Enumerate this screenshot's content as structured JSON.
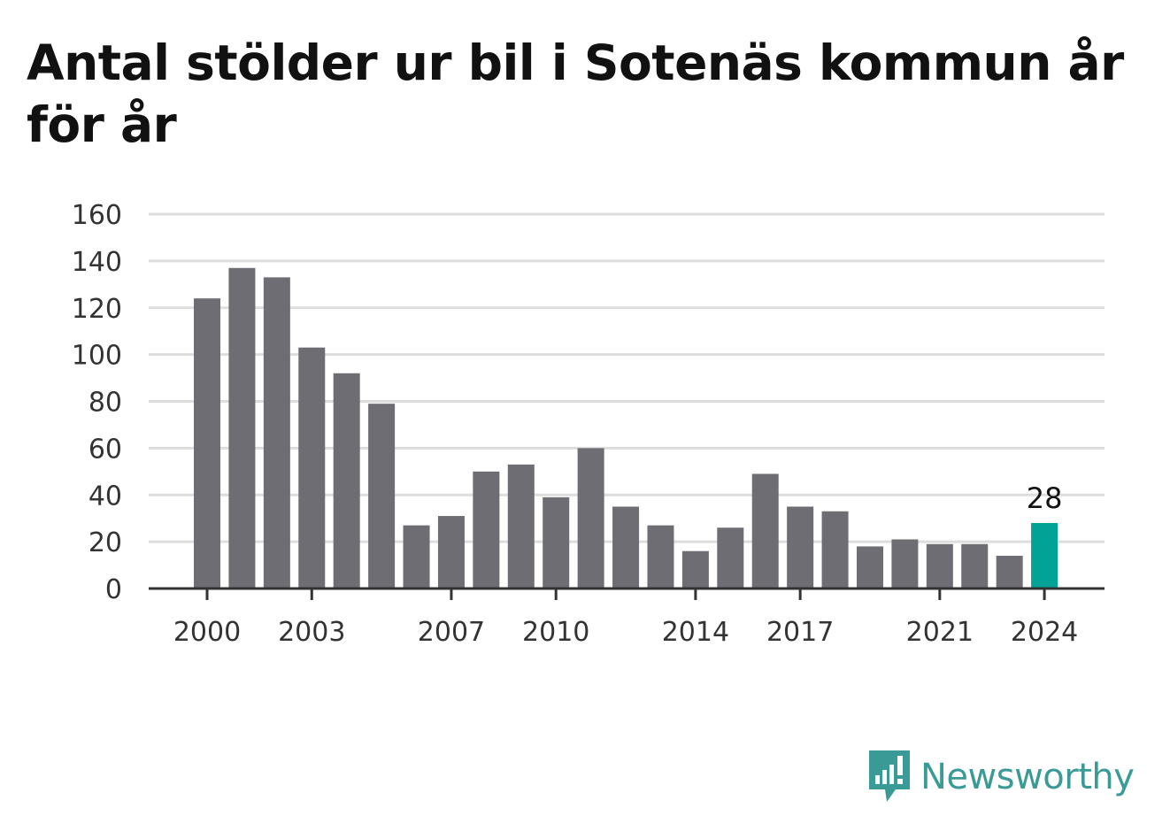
{
  "title": "Antal stölder ur bil i Sotenäs kommun år för år",
  "brand": {
    "name": "Newsworthy",
    "icon": "newsworthy-logo-icon"
  },
  "colors": {
    "bar": "#6e6d73",
    "highlight": "#00a396",
    "grid": "#dddddd",
    "axis": "#333333",
    "brand": "#3a9a95"
  },
  "chart_data": {
    "type": "bar",
    "categories": [
      2000,
      2001,
      2002,
      2003,
      2004,
      2005,
      2006,
      2007,
      2008,
      2009,
      2010,
      2011,
      2012,
      2013,
      2014,
      2015,
      2016,
      2017,
      2018,
      2019,
      2020,
      2021,
      2022,
      2023,
      2024
    ],
    "values": [
      124,
      137,
      133,
      103,
      92,
      79,
      27,
      31,
      50,
      53,
      39,
      60,
      35,
      27,
      16,
      26,
      49,
      35,
      33,
      18,
      21,
      19,
      19,
      14,
      28
    ],
    "highlight_index": 24,
    "data_labels": [
      {
        "index": 24,
        "text": "28"
      }
    ],
    "x_tick_labels": [
      "2000",
      "2003",
      "2007",
      "2010",
      "2014",
      "2017",
      "2021",
      "2024"
    ],
    "y_ticks": [
      0,
      20,
      40,
      60,
      80,
      100,
      120,
      140,
      160
    ],
    "ylim": [
      0,
      160
    ],
    "grid": true,
    "legend": false,
    "xlabel": "",
    "ylabel": ""
  }
}
